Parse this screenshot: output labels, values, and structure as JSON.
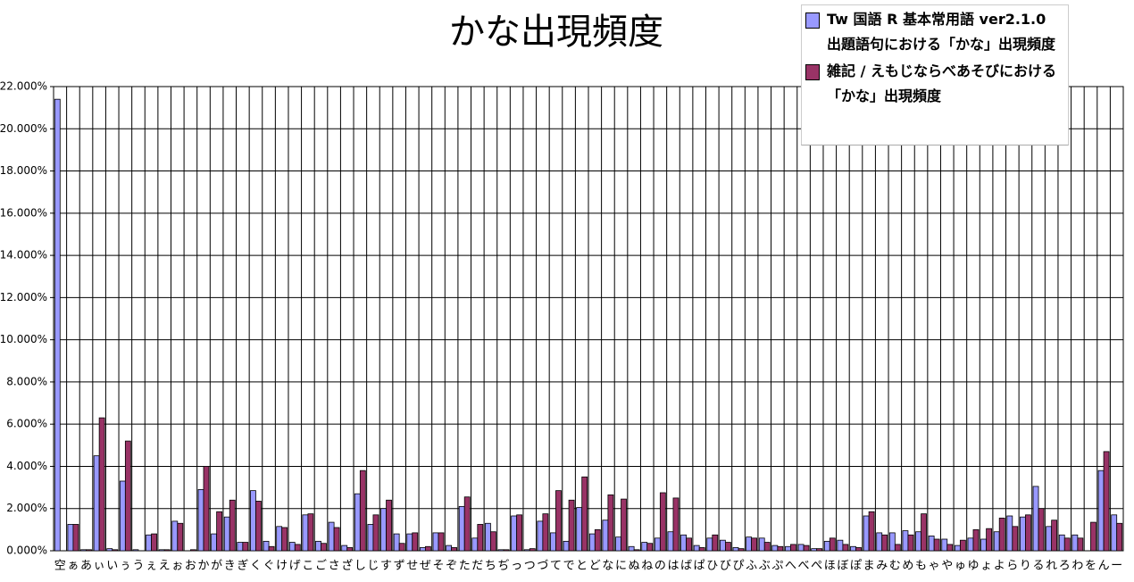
{
  "chart_data": {
    "type": "bar",
    "title": "かな出現頻度",
    "categories": [
      "空",
      "ぁ",
      "あ",
      "ぃ",
      "い",
      "ぅ",
      "う",
      "ぇ",
      "え",
      "ぉ",
      "お",
      "か",
      "が",
      "き",
      "ぎ",
      "く",
      "ぐ",
      "け",
      "げ",
      "こ",
      "ご",
      "さ",
      "ざ",
      "し",
      "じ",
      "す",
      "ず",
      "せ",
      "ぜ",
      "そ",
      "ぞ",
      "た",
      "だ",
      "ち",
      "ぢ",
      "っ",
      "つ",
      "づ",
      "て",
      "で",
      "と",
      "ど",
      "な",
      "に",
      "ぬ",
      "ね",
      "の",
      "は",
      "ば",
      "ぱ",
      "ひ",
      "び",
      "ぴ",
      "ふ",
      "ぶ",
      "ぷ",
      "へ",
      "べ",
      "ぺ",
      "ほ",
      "ぼ",
      "ぽ",
      "ま",
      "み",
      "む",
      "め",
      "も",
      "ゃ",
      "や",
      "ゅ",
      "ゆ",
      "ょ",
      "よ",
      "ら",
      "り",
      "る",
      "れ",
      "ろ",
      "わ",
      "を",
      "ん",
      "ー"
    ],
    "series": [
      {
        "name": "Tw 国語 R 基本常用語 ver2.1.0 出題語句における「かな」出現頻度",
        "color": "#9999ff",
        "values": [
          21.4,
          1.25,
          0.05,
          4.5,
          0.1,
          3.3,
          0.05,
          0.75,
          0.05,
          1.4,
          0,
          2.9,
          0.8,
          1.6,
          0.4,
          2.85,
          0.45,
          1.15,
          0.4,
          1.7,
          0.45,
          1.35,
          0.25,
          2.7,
          1.25,
          2.0,
          0.8,
          0.8,
          0.15,
          0.85,
          0.25,
          2.1,
          0.6,
          1.3,
          0.05,
          1.65,
          0.05,
          1.4,
          0.85,
          0.45,
          2.05,
          0.8,
          1.45,
          0.65,
          0.2,
          0.4,
          0.6,
          0.9,
          0.75,
          0.25,
          0.6,
          0.5,
          0.15,
          0.65,
          0.6,
          0.25,
          0.2,
          0.3,
          0.1,
          0.45,
          0.5,
          0.2,
          1.65,
          0.85,
          0.85,
          0.95,
          0.9,
          0.7,
          0.55,
          0.25,
          0.6,
          0.55,
          0.9,
          1.65,
          1.6,
          3.05,
          1.15,
          0.75,
          0.75,
          0,
          3.8,
          1.7
        ]
      },
      {
        "name": "雑記 / えもじならべあそびにおける「かな」出現頻度",
        "color": "#993366",
        "values": [
          0,
          1.25,
          0.05,
          6.3,
          0.05,
          5.2,
          0,
          0.8,
          0.05,
          1.3,
          0.05,
          4.0,
          1.85,
          2.4,
          0.4,
          2.35,
          0.2,
          1.1,
          0.3,
          1.75,
          0.35,
          1.1,
          0.15,
          3.8,
          1.7,
          2.4,
          0.35,
          0.85,
          0.2,
          0.85,
          0.15,
          2.55,
          1.25,
          0.9,
          0.05,
          1.7,
          0.1,
          1.75,
          2.85,
          2.4,
          3.5,
          1.0,
          2.65,
          2.45,
          0.05,
          0.35,
          2.75,
          2.5,
          0.6,
          0.15,
          0.75,
          0.4,
          0.1,
          0.6,
          0.4,
          0.2,
          0.3,
          0.25,
          0.1,
          0.6,
          0.3,
          0.15,
          1.85,
          0.75,
          0.3,
          0.75,
          1.75,
          0.55,
          0.3,
          0.5,
          1.0,
          1.05,
          1.55,
          1.15,
          1.7,
          2.0,
          1.45,
          0.6,
          0.6,
          1.35,
          4.7,
          1.3
        ]
      }
    ],
    "ylim": [
      0,
      22
    ],
    "yticks": [
      {
        "value": 0,
        "label": "0.000%"
      },
      {
        "value": 2,
        "label": "2.000%"
      },
      {
        "value": 4,
        "label": "4.000%"
      },
      {
        "value": 6,
        "label": "6.000%"
      },
      {
        "value": 8,
        "label": "8.000%"
      },
      {
        "value": 10,
        "label": "10.000%"
      },
      {
        "value": 12,
        "label": "12.000%"
      },
      {
        "value": 14,
        "label": "14.000%"
      },
      {
        "value": 16,
        "label": "16.000%"
      },
      {
        "value": 18,
        "label": "18.000%"
      },
      {
        "value": 20,
        "label": "20.000%"
      },
      {
        "value": 22,
        "label": "22.000%"
      }
    ],
    "grid": true
  }
}
